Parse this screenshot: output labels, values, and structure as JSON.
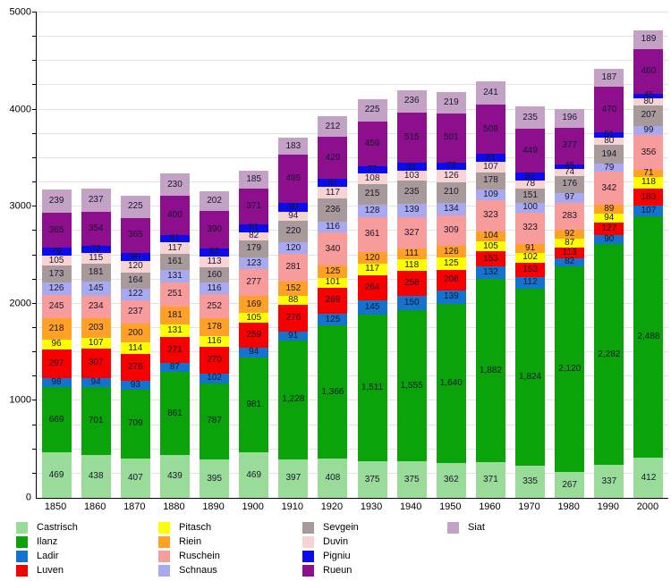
{
  "chart_data": {
    "type": "bar",
    "stacked": true,
    "title": "",
    "xlabel": "",
    "ylabel": "",
    "ylim": [
      0,
      5000
    ],
    "y_ticks": [
      0,
      1000,
      2000,
      3000,
      4000,
      5000
    ],
    "grid_interval": 250,
    "grid": true,
    "legend_position": "bottom",
    "categories": [
      "1850",
      "1860",
      "1870",
      "1880",
      "1890",
      "1900",
      "1910",
      "1920",
      "1930",
      "1940",
      "1950",
      "1960",
      "1970",
      "1980",
      "1990",
      "2000"
    ],
    "series": [
      {
        "name": "Castrisch",
        "color": "#99db99",
        "values": [
          469,
          438,
          407,
          439,
          395,
          469,
          397,
          408,
          375,
          375,
          362,
          371,
          335,
          267,
          337,
          412
        ]
      },
      {
        "name": "Ilanz",
        "color": "#0aa30a",
        "values": [
          669,
          701,
          709,
          861,
          787,
          981,
          1228,
          1366,
          1511,
          1555,
          1640,
          1882,
          1824,
          2120,
          2282,
          2488
        ]
      },
      {
        "name": "Ladir",
        "color": "#1373cf",
        "values": [
          98,
          94,
          93,
          87,
          102,
          94,
          91,
          125,
          145,
          150,
          139,
          132,
          112,
          82,
          90,
          107
        ]
      },
      {
        "name": "Luven",
        "color": "#f80000",
        "values": [
          297,
          307,
          276,
          271,
          270,
          259,
          276,
          269,
          264,
          258,
          208,
          153,
          153,
          113,
          127,
          183
        ]
      },
      {
        "name": "Pitasch",
        "color": "#ffff00",
        "values": [
          96,
          107,
          114,
          131,
          116,
          105,
          88,
          101,
          117,
          118,
          125,
          105,
          102,
          87,
          94,
          118
        ]
      },
      {
        "name": "Riein",
        "color": "#ffa126",
        "values": [
          218,
          203,
          200,
          181,
          178,
          169,
          152,
          125,
          120,
          111,
          126,
          104,
          91,
          92,
          89,
          71
        ]
      },
      {
        "name": "Ruschein",
        "color": "#f89b9b",
        "values": [
          245,
          234,
          237,
          251,
          252,
          277,
          281,
          340,
          361,
          327,
          309,
          323,
          323,
          283,
          342,
          356
        ]
      },
      {
        "name": "Schnaus",
        "color": "#a9a9ef",
        "values": [
          126,
          145,
          122,
          131,
          116,
          123,
          120,
          116,
          128,
          139,
          134,
          109,
          100,
          97,
          79,
          99
        ]
      },
      {
        "name": "Sevgein",
        "color": "#a89a9a",
        "values": [
          173,
          181,
          164,
          161,
          160,
          179,
          220,
          236,
          215,
          235,
          210,
          178,
          151,
          176,
          194,
          207
        ]
      },
      {
        "name": "Duvin",
        "color": "#f8d3d3",
        "values": [
          105,
          115,
          120,
          117,
          113,
          82,
          94,
          117,
          108,
          103,
          126,
          107,
          78,
          74,
          80,
          80
        ]
      },
      {
        "name": "Pigniu",
        "color": "#0b0bef",
        "values": [
          79,
          73,
          80,
          81,
          82,
          81,
          90,
          87,
          77,
          81,
          78,
          81,
          82,
          45,
          51,
          45
        ]
      },
      {
        "name": "Rueun",
        "color": "#8d0f8d",
        "values": [
          365,
          354,
          365,
          400,
          390,
          371,
          495,
          429,
          459,
          515,
          501,
          508,
          449,
          377,
          470,
          460
        ]
      },
      {
        "name": "Siat",
        "color": "#c3a2c6",
        "values": [
          239,
          237,
          225,
          230,
          202,
          185,
          183,
          212,
          225,
          236,
          219,
          241,
          235,
          196,
          187,
          189
        ]
      }
    ],
    "legend_columns": [
      [
        "Castrisch",
        "Ilanz",
        "Ladir",
        "Luven"
      ],
      [
        "Pitasch",
        "Riein",
        "Ruschein",
        "Schnaus"
      ],
      [
        "Sevgein",
        "Duvin",
        "Pigniu",
        "Rueun"
      ],
      [
        "Siat"
      ]
    ]
  }
}
